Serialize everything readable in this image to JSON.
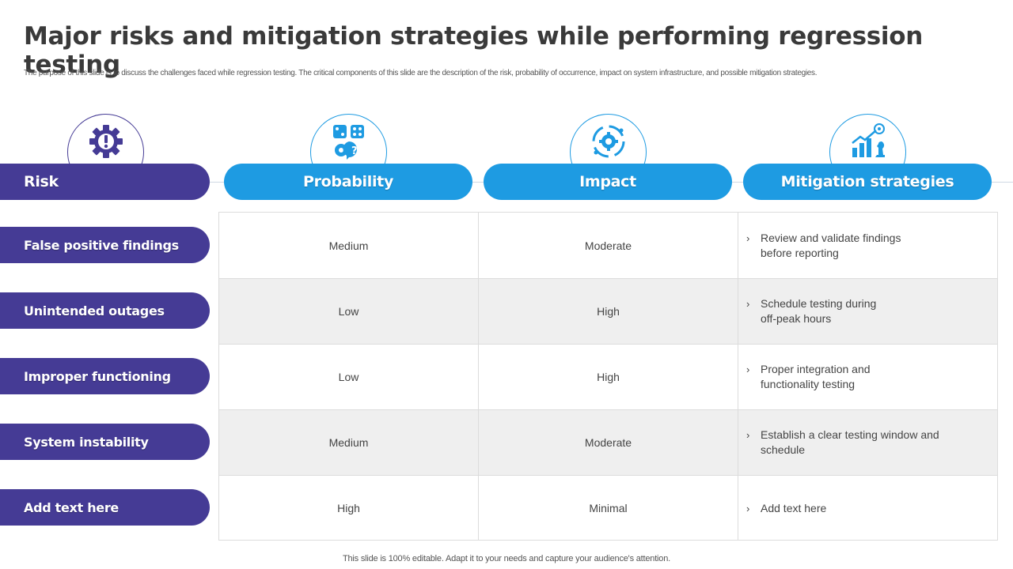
{
  "title": "Major risks and mitigation strategies while performing regression testing",
  "subtitle": "The purpose of this slide is to discuss the challenges faced while regression testing. The critical components of this slide are the description of the risk, probability of occurrence, impact on system infrastructure, and possible mitigation strategies.",
  "colors": {
    "purple": "#453b95",
    "blue": "#1e9be2",
    "row_shade": "#efefef"
  },
  "headers": {
    "risk": {
      "label": "Risk",
      "icon": "gear-warning-icon"
    },
    "probability": {
      "label": "Probability",
      "icon": "dice-question-icon"
    },
    "impact": {
      "label": "Impact",
      "icon": "target-gear-icon"
    },
    "mitigation": {
      "label": "Mitigation strategies",
      "icon": "growth-chart-chess-icon"
    }
  },
  "rows": [
    {
      "risk": "False positive findings",
      "probability": "Medium",
      "impact": "Moderate",
      "mitigation": [
        "Review and validate findings",
        "before reporting"
      ]
    },
    {
      "risk": "Unintended outages",
      "probability": "Low",
      "impact": "High",
      "mitigation": [
        "Schedule testing during",
        "off-peak hours"
      ]
    },
    {
      "risk": "Improper functioning",
      "probability": "Low",
      "impact": "High",
      "mitigation": [
        "Proper integration and",
        "functionality testing"
      ]
    },
    {
      "risk": "System instability",
      "probability": "Medium",
      "impact": "Moderate",
      "mitigation": [
        "Establish a clear testing window and",
        "schedule"
      ]
    },
    {
      "risk": "Add text here",
      "probability": "High",
      "impact": "Minimal",
      "mitigation": [
        "Add text here"
      ]
    }
  ],
  "bullet_glyph": "›",
  "footer": "This slide is 100% editable. Adapt it to your needs and capture your audience's attention."
}
